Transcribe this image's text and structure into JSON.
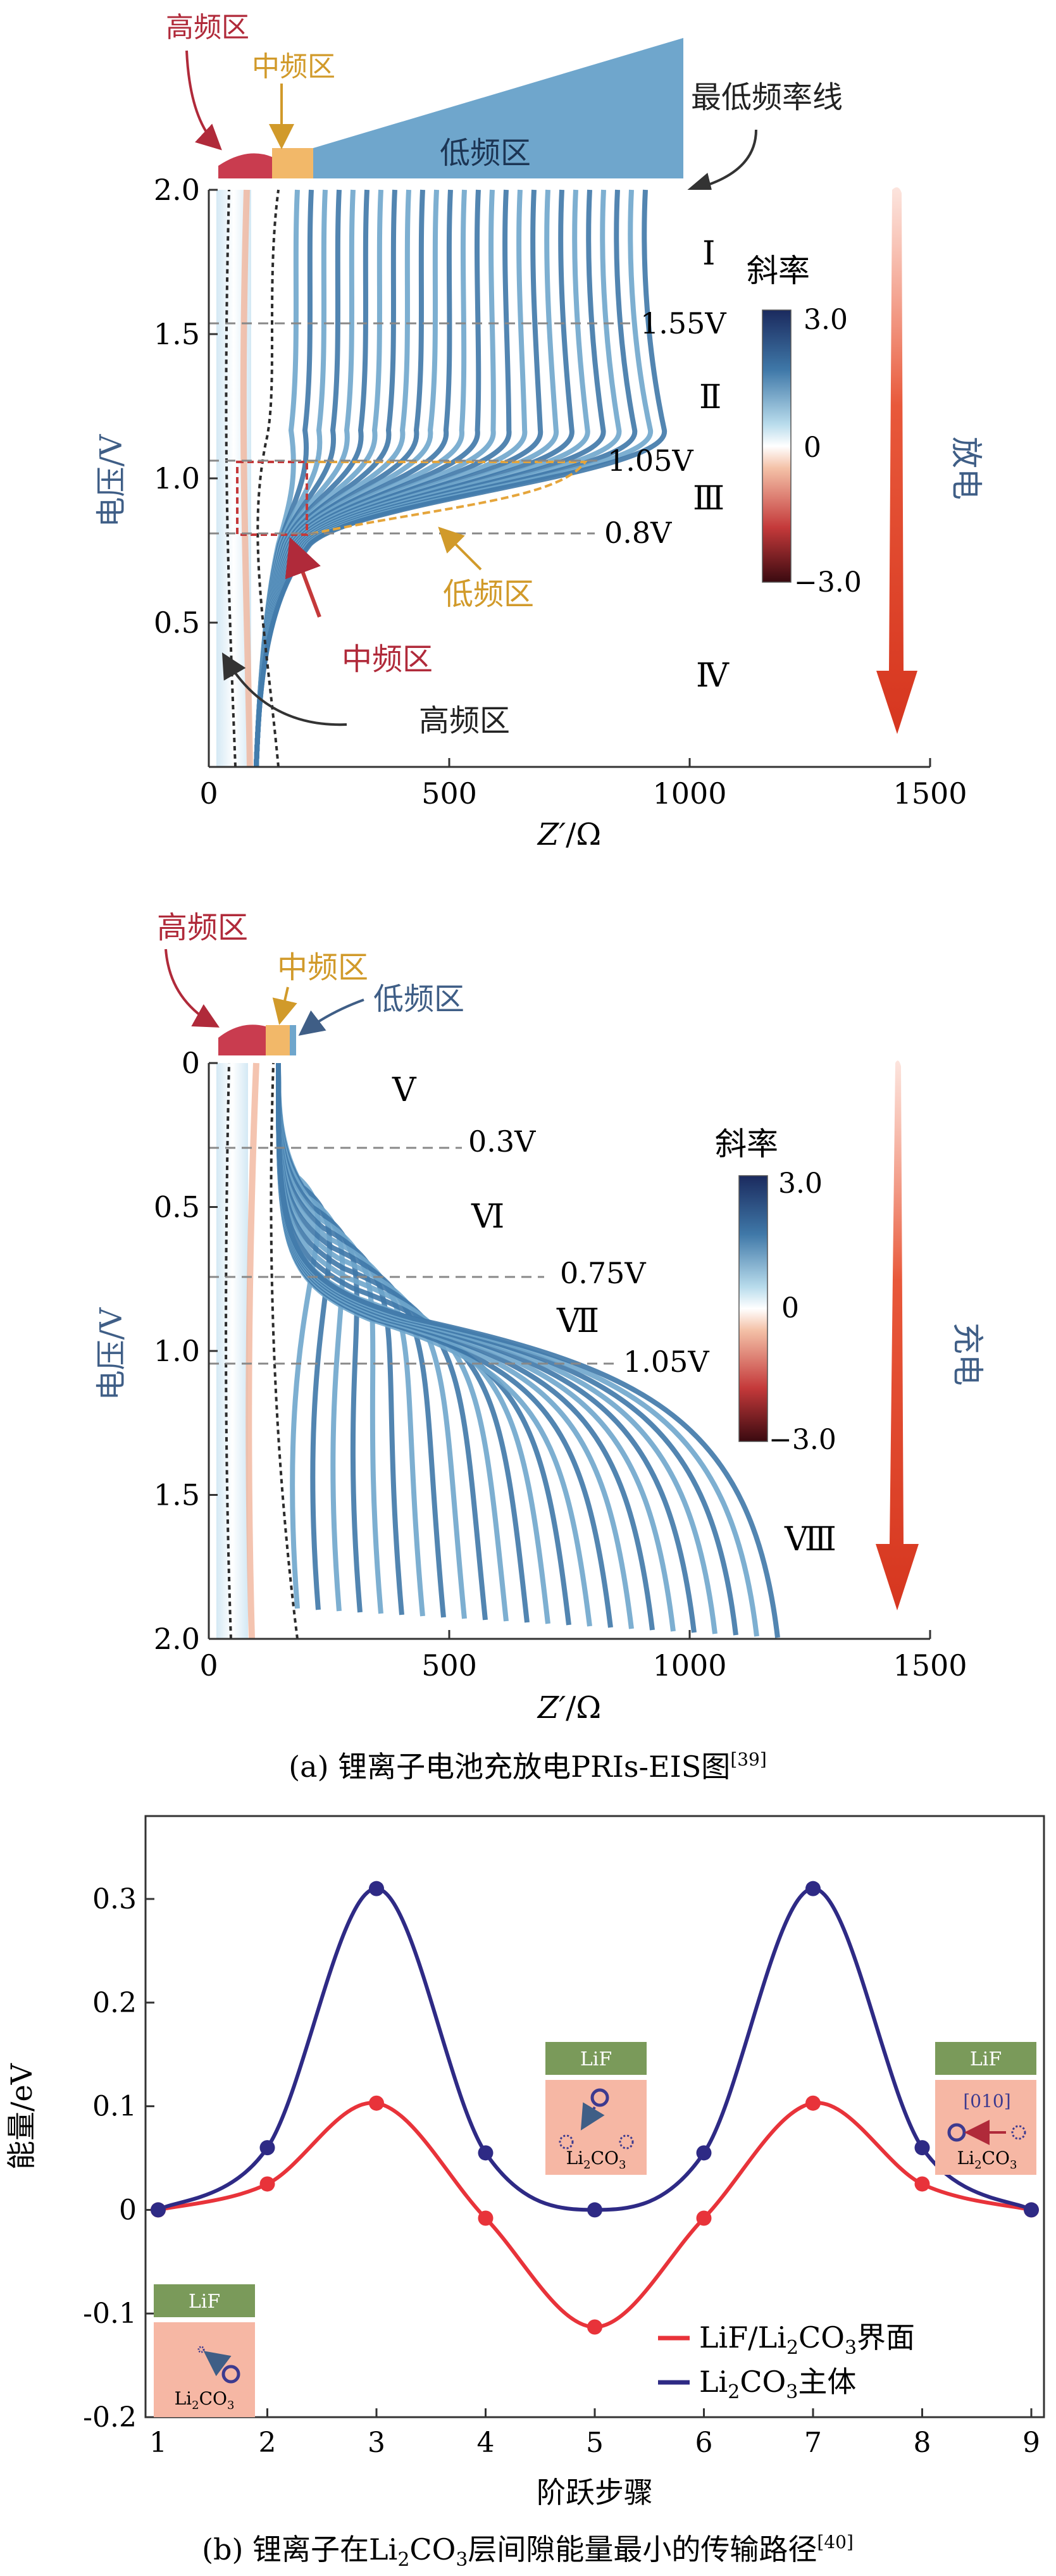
{
  "panel_a": {
    "caption": "(a) 锂离子电池充放电PRIs-EIS图",
    "caption_ref": "[39]",
    "discharge": {
      "bands": {
        "high": "高频区",
        "mid": "中频区",
        "low": "低频区",
        "lowest_line": "最低频率线"
      },
      "ylabel": "电压/V",
      "xlabel_main": "Z′",
      "xlabel_unit": "/Ω",
      "xticks": [
        "0",
        "500",
        "1000",
        "1500"
      ],
      "yticks": [
        "2.0",
        "1.5",
        "1.0",
        "0.5"
      ],
      "zone_labels": [
        "Ⅰ",
        "Ⅱ",
        "Ⅲ",
        "Ⅳ"
      ],
      "voltage_lines": [
        "1.55V",
        "1.05V",
        "0.8V"
      ],
      "annotation_low": "低频区",
      "annotation_mid": "中频区",
      "annotation_high": "高频区",
      "colorbar_title": "斜率",
      "colorbar_ticks": [
        "3.0",
        "0",
        "−3.0"
      ],
      "direction_label": "放电"
    },
    "charge": {
      "bands": {
        "high": "高频区",
        "mid": "中频区",
        "low": "低频区"
      },
      "ylabel": "电压/V",
      "xlabel_main": "Z′",
      "xlabel_unit": "/Ω",
      "xticks": [
        "0",
        "500",
        "1000",
        "1500"
      ],
      "yticks": [
        "0",
        "0.5",
        "1.0",
        "1.5",
        "2.0"
      ],
      "zone_labels": [
        "Ⅴ",
        "Ⅵ",
        "Ⅶ",
        "Ⅷ"
      ],
      "voltage_lines": [
        "0.3V",
        "0.75V",
        "1.05V"
      ],
      "colorbar_title": "斜率",
      "colorbar_ticks": [
        "3.0",
        "0",
        "−3.0"
      ],
      "direction_label": "充电"
    }
  },
  "panel_b": {
    "caption_pre": "(b) 锂离子在Li",
    "caption_sub": "2",
    "caption_mid": "CO",
    "caption_sub2": "3",
    "caption_post": "层间隙能量最小的传输路径",
    "caption_ref": "[40]",
    "ylabel": "能量/eV",
    "xlabel": "阶跃步骤",
    "xticks": [
      "1",
      "2",
      "3",
      "4",
      "5",
      "6",
      "7",
      "8",
      "9"
    ],
    "yticks": [
      "0.3",
      "0.2",
      "0.1",
      "0",
      "-0.1",
      "-0.2"
    ],
    "legend": {
      "interface_pre": "LiF/Li",
      "interface_sub": "2",
      "interface_mid": "CO",
      "interface_sub2": "3",
      "interface_post": "界面",
      "bulk_pre": "Li",
      "bulk_sub": "2",
      "bulk_mid": "CO",
      "bulk_sub2": "3",
      "bulk_post": "主体"
    },
    "insets": {
      "lif": "LiF",
      "li2co3_pre": "Li",
      "li2co3_sub": "2",
      "li2co3_mid": "CO",
      "li2co3_sub2": "3",
      "direction": "[010]"
    }
  },
  "chart_data": [
    {
      "type": "heatmap",
      "panel": "discharge",
      "xlabel": "Z′/Ω",
      "ylabel": "电压/V",
      "xlim": [
        0,
        1500
      ],
      "ylim": [
        0,
        2.0
      ],
      "colorbar": {
        "title": "斜率",
        "range": [
          -3.0,
          3.0
        ]
      },
      "voltage_markers": [
        1.55,
        1.05,
        0.8
      ]
    },
    {
      "type": "heatmap",
      "panel": "charge",
      "xlabel": "Z′/Ω",
      "ylabel": "电压/V",
      "xlim": [
        0,
        1500
      ],
      "ylim": [
        0,
        2.0
      ],
      "colorbar": {
        "title": "斜率",
        "range": [
          -3.0,
          3.0
        ]
      },
      "voltage_markers": [
        0.3,
        0.75,
        1.05
      ]
    },
    {
      "type": "line",
      "xlabel": "阶跃步骤",
      "ylabel": "能量/eV",
      "xlim": [
        1,
        9
      ],
      "ylim": [
        -0.2,
        0.38
      ],
      "x": [
        1,
        2,
        3,
        4,
        5,
        6,
        7,
        8,
        9
      ],
      "series": [
        {
          "name": "LiF/Li2CO3界面",
          "color": "#e8333a",
          "values": [
            0,
            0.025,
            0.103,
            -0.008,
            -0.113,
            -0.008,
            0.103,
            0.025,
            0
          ]
        },
        {
          "name": "Li2CO3主体",
          "color": "#2e2a85",
          "values": [
            0,
            0.06,
            0.31,
            0.055,
            0,
            0.055,
            0.31,
            0.06,
            0
          ]
        }
      ]
    }
  ]
}
